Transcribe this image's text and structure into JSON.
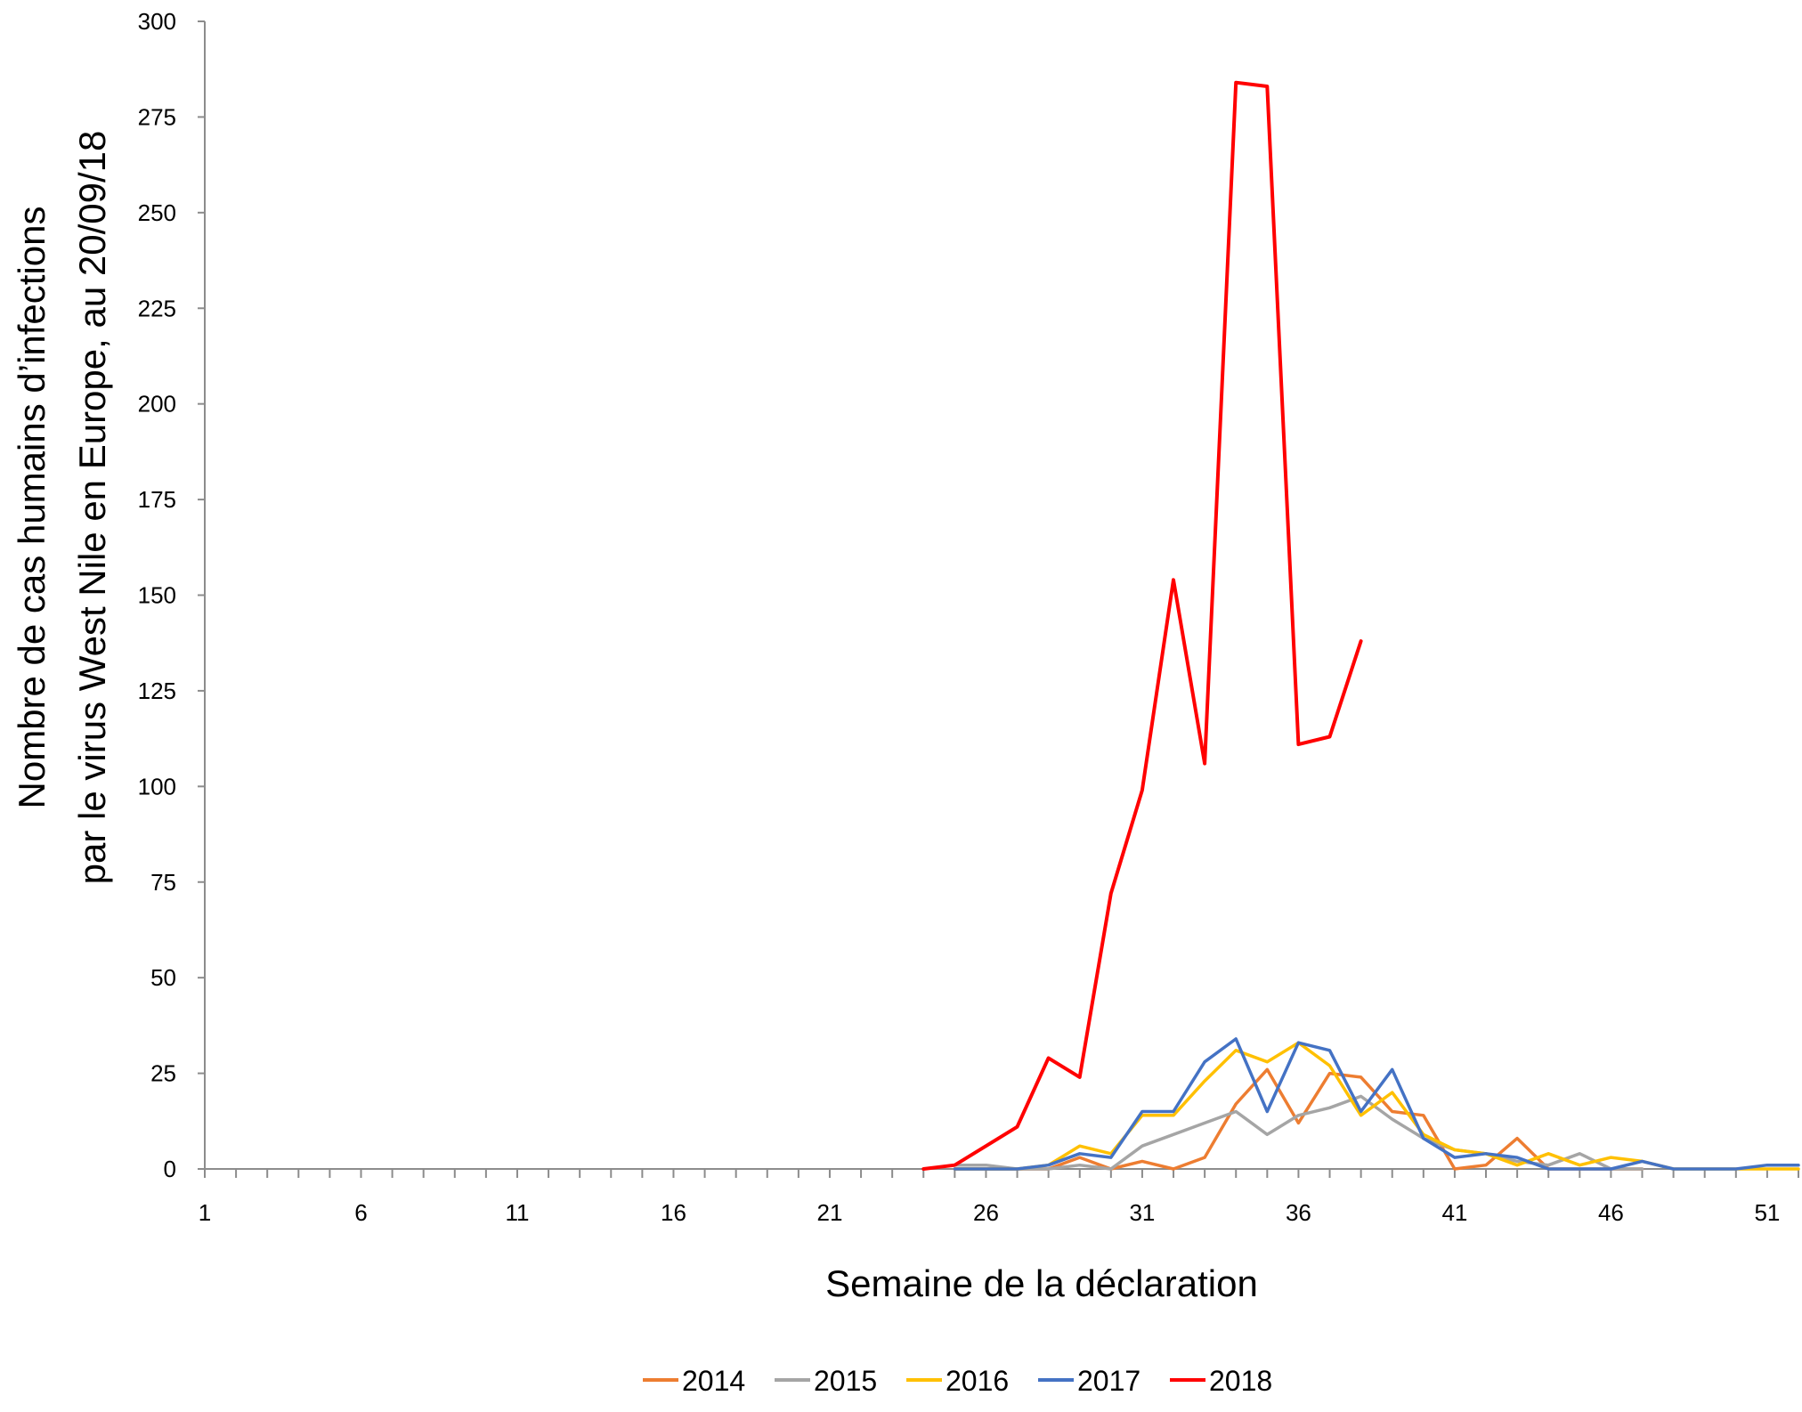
{
  "chart_data": {
    "type": "line",
    "title": "",
    "xlabel": "Semaine de la déclaration",
    "ylabel_lines": [
      "Nombre de cas humains d’infections",
      "par le virus West Nile en Europe, au 20/09/18"
    ],
    "xlim": [
      1,
      52
    ],
    "ylim": [
      0,
      300
    ],
    "x_tick_labels": [
      "1",
      "6",
      "11",
      "16",
      "21",
      "26",
      "31",
      "36",
      "41",
      "46",
      "51"
    ],
    "y_tick_labels": [
      "0",
      "25",
      "50",
      "75",
      "100",
      "125",
      "150",
      "175",
      "200",
      "225",
      "250",
      "275",
      "300"
    ],
    "grid": false,
    "legend_position": "bottom",
    "series": [
      {
        "name": "2014",
        "color": "#ED7D31",
        "x": [
          25,
          26,
          27,
          28,
          29,
          30,
          31,
          32,
          33,
          34,
          35,
          36,
          37,
          38,
          39,
          40,
          41,
          42,
          43,
          44,
          45,
          46,
          47
        ],
        "y": [
          0,
          0,
          0,
          0,
          3,
          0,
          2,
          0,
          3,
          17,
          26,
          12,
          25,
          24,
          15,
          14,
          0,
          1,
          8,
          0,
          0,
          0,
          0
        ]
      },
      {
        "name": "2015",
        "color": "#A5A5A5",
        "x": [
          25,
          26,
          27,
          28,
          29,
          30,
          31,
          32,
          33,
          34,
          35,
          36,
          37,
          38,
          39,
          40,
          41,
          42,
          43,
          44,
          45,
          46,
          47
        ],
        "y": [
          1,
          1,
          0,
          0,
          1,
          0,
          6,
          9,
          12,
          15,
          9,
          14,
          16,
          19,
          13,
          8,
          5,
          4,
          2,
          1,
          4,
          0,
          0
        ]
      },
      {
        "name": "2016",
        "color": "#FFC000",
        "x": [
          25,
          26,
          27,
          28,
          29,
          30,
          31,
          32,
          33,
          34,
          35,
          36,
          37,
          38,
          39,
          40,
          41,
          42,
          43,
          44,
          45,
          46,
          47,
          48,
          49,
          50,
          51,
          52
        ],
        "y": [
          0,
          0,
          0,
          1,
          6,
          4,
          14,
          14,
          23,
          31,
          28,
          33,
          27,
          14,
          20,
          9,
          5,
          4,
          1,
          4,
          1,
          3,
          2,
          0,
          0,
          0,
          0,
          0
        ]
      },
      {
        "name": "2017",
        "color": "#4472C4",
        "x": [
          25,
          26,
          27,
          28,
          29,
          30,
          31,
          32,
          33,
          34,
          35,
          36,
          37,
          38,
          39,
          40,
          41,
          42,
          43,
          44,
          45,
          46,
          47,
          48,
          49,
          50,
          51,
          52
        ],
        "y": [
          0,
          0,
          0,
          1,
          4,
          3,
          15,
          15,
          28,
          34,
          15,
          33,
          31,
          15,
          26,
          8,
          3,
          4,
          3,
          0,
          0,
          0,
          2,
          0,
          0,
          0,
          1,
          1
        ]
      },
      {
        "name": "2018",
        "color": "#FF0000",
        "x": [
          24,
          25,
          26,
          27,
          28,
          29,
          30,
          31,
          32,
          33,
          34,
          35,
          36,
          37,
          38
        ],
        "y": [
          0,
          1,
          6,
          11,
          29,
          24,
          72,
          99,
          154,
          106,
          284,
          283,
          111,
          113,
          138
        ]
      }
    ]
  }
}
